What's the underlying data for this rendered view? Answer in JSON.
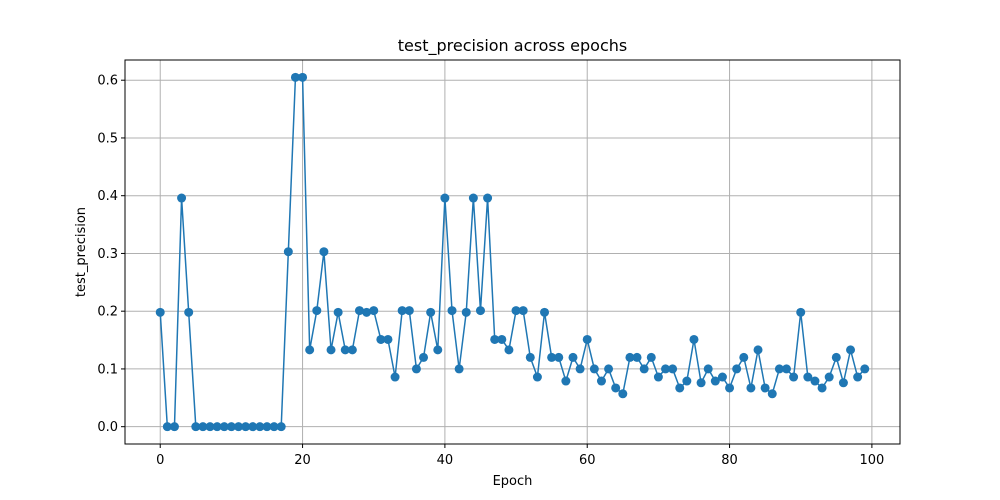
{
  "chart_data": {
    "type": "line",
    "title": "test_precision across epochs",
    "xlabel": "Epoch",
    "ylabel": "test_precision",
    "xlim": [
      -4.95,
      103.95
    ],
    "ylim": [
      -0.03,
      0.635
    ],
    "xticks": [
      0,
      20,
      40,
      60,
      80,
      100
    ],
    "yticks": [
      0.0,
      0.1,
      0.2,
      0.3,
      0.4,
      0.5,
      0.6
    ],
    "ytick_labels": [
      "0.0",
      "0.1",
      "0.2",
      "0.3",
      "0.4",
      "0.5",
      "0.6"
    ],
    "grid": true,
    "marker": "circle",
    "color": "#1f77b4",
    "series": [
      {
        "x": [
          0,
          1,
          2,
          3,
          4,
          5,
          6,
          7,
          8,
          9,
          10,
          11,
          12,
          13,
          14,
          15,
          16,
          17,
          18,
          19,
          20,
          21,
          22,
          23,
          24,
          25,
          26,
          27,
          28,
          29,
          30,
          31,
          32,
          33,
          34,
          35,
          36,
          37,
          38,
          39,
          40,
          41,
          42,
          43,
          44,
          45,
          46,
          47,
          48,
          49,
          50,
          51,
          52,
          53,
          54,
          55,
          56,
          57,
          58,
          59,
          60,
          61,
          62,
          63,
          64,
          65,
          66,
          67,
          68,
          69,
          70,
          71,
          72,
          73,
          74,
          75,
          76,
          77,
          78,
          79,
          80,
          81,
          82,
          83,
          84,
          85,
          86,
          87,
          88,
          89,
          90,
          91,
          92,
          93,
          94,
          95,
          96,
          97,
          98,
          99
        ],
        "values": [
          0.198,
          0.0,
          0.0,
          0.396,
          0.198,
          0.0,
          0.0,
          0.0,
          0.0,
          0.0,
          0.0,
          0.0,
          0.0,
          0.0,
          0.0,
          0.0,
          0.0,
          0.0,
          0.303,
          0.605,
          0.605,
          0.133,
          0.201,
          0.303,
          0.133,
          0.198,
          0.133,
          0.133,
          0.201,
          0.198,
          0.201,
          0.151,
          0.151,
          0.086,
          0.201,
          0.201,
          0.1,
          0.12,
          0.198,
          0.133,
          0.396,
          0.201,
          0.1,
          0.198,
          0.396,
          0.201,
          0.396,
          0.151,
          0.151,
          0.133,
          0.201,
          0.201,
          0.12,
          0.086,
          0.198,
          0.12,
          0.12,
          0.079,
          0.12,
          0.1,
          0.151,
          0.1,
          0.079,
          0.1,
          0.067,
          0.057,
          0.12,
          0.12,
          0.1,
          0.12,
          0.086,
          0.1,
          0.1,
          0.067,
          0.079,
          0.151,
          0.076,
          0.1,
          0.079,
          0.086,
          0.067,
          0.1,
          0.12,
          0.067,
          0.133,
          0.067,
          0.057,
          0.1,
          0.1,
          0.086,
          0.198,
          0.086,
          0.079,
          0.067,
          0.086,
          0.12,
          0.076,
          0.133,
          0.086,
          0.1
        ]
      }
    ]
  }
}
